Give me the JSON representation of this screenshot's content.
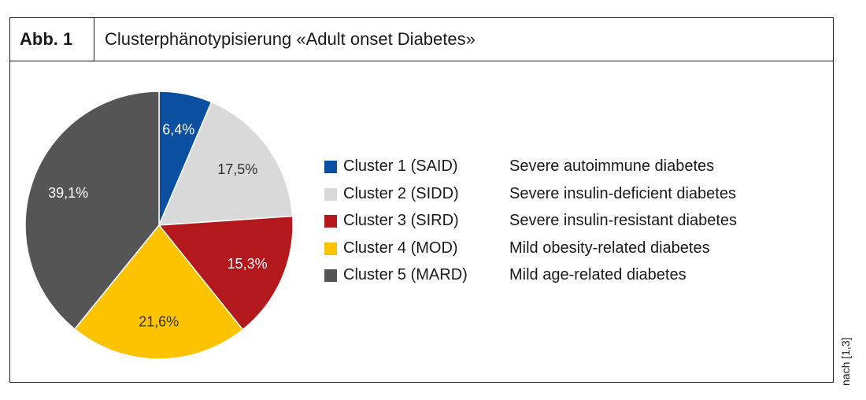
{
  "header": {
    "figure_label": "Abb. 1",
    "title": "Clusterphänotypisierung «Adult onset Diabetes»"
  },
  "source_note": "nach [1,3]",
  "chart_data": {
    "type": "pie",
    "slices": [
      {
        "label": "Cluster 1 (SAID)",
        "description": "Severe autoimmune diabetes",
        "value": 6.4,
        "value_label": "6,4%",
        "color": "#0a4fa0",
        "label_color": "#ffffff"
      },
      {
        "label": "Cluster 2 (SIDD)",
        "description": "Severe insulin-deficient diabetes",
        "value": 17.5,
        "value_label": "17,5%",
        "color": "#d9d9d9",
        "label_color": "#333333"
      },
      {
        "label": "Cluster 3 (SIRD)",
        "description": "Severe insulin-resistant diabetes",
        "value": 15.3,
        "value_label": "15,3%",
        "color": "#b3181c",
        "label_color": "#ffffff"
      },
      {
        "label": "Cluster 4 (MOD)",
        "description": "Mild obesity-related diabetes",
        "value": 21.6,
        "value_label": "21,6%",
        "color": "#fdc300",
        "label_color": "#333333"
      },
      {
        "label": "Cluster 5 (MARD)",
        "description": "Mild age-related diabetes",
        "value": 39.1,
        "value_label": "39,1%",
        "color": "#555555",
        "label_color": "#ffffff"
      }
    ],
    "start_angle": "12 o'clock",
    "direction": "clockwise",
    "legend_position": "right"
  }
}
